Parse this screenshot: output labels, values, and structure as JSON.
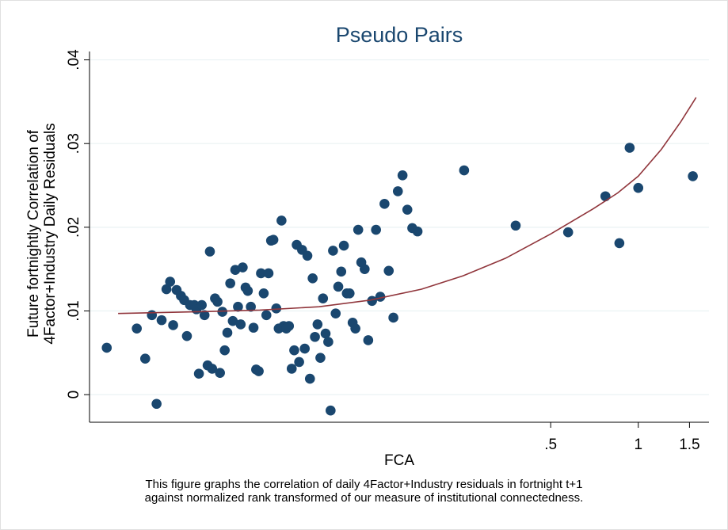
{
  "chart_data": {
    "type": "scatter",
    "title": "Pseudo Pairs",
    "xlabel": "FCA",
    "ylabel_lines": [
      "Future fortnightly Correlation of",
      "4Factor+Industry Daily Residuals"
    ],
    "x_scale": "log",
    "xlim": [
      0.013,
      1.75
    ],
    "x_ticks": [
      0.5,
      1,
      1.5
    ],
    "x_tick_labels": [
      ".5",
      "1",
      "1.5"
    ],
    "ylim": [
      -0.0033,
      0.041
    ],
    "y_ticks": [
      0,
      0.01,
      0.02,
      0.03,
      0.04
    ],
    "y_tick_labels": [
      "0",
      ".01",
      ".02",
      ".03",
      ".04"
    ],
    "grid": true,
    "marker_color": "#1a476f",
    "fit_color": "#90353b",
    "points": [
      [
        0.0149,
        0.0056
      ],
      [
        0.0189,
        0.0079
      ],
      [
        0.0202,
        0.0043
      ],
      [
        0.0213,
        0.0095
      ],
      [
        0.0221,
        -0.0011
      ],
      [
        0.023,
        0.0089
      ],
      [
        0.0239,
        0.0126
      ],
      [
        0.0246,
        0.0135
      ],
      [
        0.0252,
        0.0083
      ],
      [
        0.0259,
        0.0125
      ],
      [
        0.0268,
        0.0118
      ],
      [
        0.0275,
        0.0113
      ],
      [
        0.0281,
        0.007
      ],
      [
        0.0288,
        0.0107
      ],
      [
        0.0298,
        0.0107
      ],
      [
        0.0303,
        0.0102
      ],
      [
        0.0309,
        0.0025
      ],
      [
        0.0316,
        0.0107
      ],
      [
        0.0323,
        0.0095
      ],
      [
        0.0331,
        0.0035
      ],
      [
        0.0337,
        0.0171
      ],
      [
        0.0343,
        0.0031
      ],
      [
        0.0351,
        0.0115
      ],
      [
        0.0358,
        0.0111
      ],
      [
        0.0365,
        0.0026
      ],
      [
        0.0372,
        0.0099
      ],
      [
        0.0379,
        0.0053
      ],
      [
        0.0387,
        0.0074
      ],
      [
        0.0396,
        0.0133
      ],
      [
        0.0404,
        0.0088
      ],
      [
        0.0412,
        0.0149
      ],
      [
        0.0421,
        0.0105
      ],
      [
        0.043,
        0.0084
      ],
      [
        0.0437,
        0.0152
      ],
      [
        0.0447,
        0.0128
      ],
      [
        0.0455,
        0.0124
      ],
      [
        0.0466,
        0.0105
      ],
      [
        0.0476,
        0.008
      ],
      [
        0.0486,
        0.003
      ],
      [
        0.0496,
        0.0028
      ],
      [
        0.0505,
        0.0145
      ],
      [
        0.0516,
        0.0121
      ],
      [
        0.0527,
        0.0095
      ],
      [
        0.0536,
        0.0145
      ],
      [
        0.0547,
        0.0184
      ],
      [
        0.0557,
        0.0185
      ],
      [
        0.057,
        0.0103
      ],
      [
        0.0581,
        0.0079
      ],
      [
        0.0594,
        0.0208
      ],
      [
        0.0604,
        0.0082
      ],
      [
        0.0617,
        0.0079
      ],
      [
        0.063,
        0.0082
      ],
      [
        0.0644,
        0.0031
      ],
      [
        0.0657,
        0.0053
      ],
      [
        0.067,
        0.0179
      ],
      [
        0.0683,
        0.0039
      ],
      [
        0.0699,
        0.0173
      ],
      [
        0.0714,
        0.0055
      ],
      [
        0.0729,
        0.0166
      ],
      [
        0.0744,
        0.0019
      ],
      [
        0.076,
        0.0139
      ],
      [
        0.0774,
        0.0069
      ],
      [
        0.079,
        0.0084
      ],
      [
        0.0808,
        0.0044
      ],
      [
        0.0825,
        0.0115
      ],
      [
        0.0842,
        0.0073
      ],
      [
        0.086,
        0.0063
      ],
      [
        0.0876,
        -0.0019
      ],
      [
        0.0893,
        0.0172
      ],
      [
        0.0912,
        0.0097
      ],
      [
        0.0931,
        0.0129
      ],
      [
        0.0953,
        0.0147
      ],
      [
        0.0973,
        0.0178
      ],
      [
        0.0996,
        0.0121
      ],
      [
        0.1018,
        0.0121
      ],
      [
        0.1043,
        0.0086
      ],
      [
        0.1066,
        0.0079
      ],
      [
        0.109,
        0.0197
      ],
      [
        0.1117,
        0.0158
      ],
      [
        0.1147,
        0.015
      ],
      [
        0.118,
        0.0065
      ],
      [
        0.1216,
        0.0112
      ],
      [
        0.1255,
        0.0197
      ],
      [
        0.1298,
        0.0117
      ],
      [
        0.1342,
        0.0228
      ],
      [
        0.1388,
        0.0148
      ],
      [
        0.144,
        0.0092
      ],
      [
        0.1492,
        0.0243
      ],
      [
        0.1548,
        0.0262
      ],
      [
        0.1608,
        0.0221
      ],
      [
        0.1672,
        0.0199
      ],
      [
        0.1743,
        0.0195
      ],
      [
        0.252,
        0.0268
      ],
      [
        0.379,
        0.0202
      ],
      [
        0.574,
        0.0194
      ],
      [
        0.771,
        0.0237
      ],
      [
        0.861,
        0.0181
      ],
      [
        0.934,
        0.0295
      ],
      [
        1.0,
        0.0247
      ],
      [
        1.54,
        0.0261
      ]
    ],
    "fit_curve": [
      [
        0.0163,
        0.0097
      ],
      [
        0.03,
        0.0099
      ],
      [
        0.05,
        0.0101
      ],
      [
        0.08,
        0.0105
      ],
      [
        0.12,
        0.0113
      ],
      [
        0.18,
        0.0126
      ],
      [
        0.25,
        0.0142
      ],
      [
        0.35,
        0.0163
      ],
      [
        0.5,
        0.0192
      ],
      [
        0.7,
        0.0222
      ],
      [
        0.85,
        0.0241
      ],
      [
        1.0,
        0.0261
      ],
      [
        1.2,
        0.0293
      ],
      [
        1.4,
        0.0326
      ],
      [
        1.58,
        0.0355
      ]
    ]
  },
  "caption_lines": [
    "This figure graphs the correlation of daily 4Factor+Industry residuals in fortnight t+1",
    "against normalized rank transformed of our measure of institutional connectedness."
  ]
}
